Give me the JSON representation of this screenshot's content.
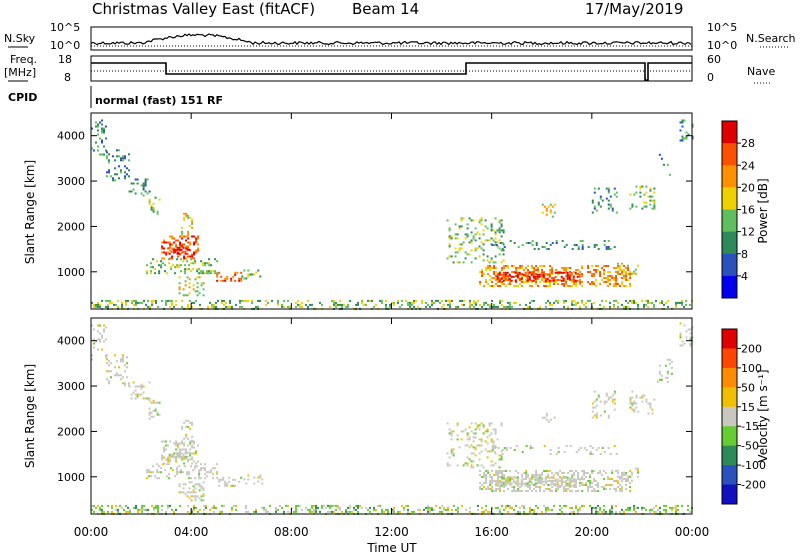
{
  "header": {
    "title": "Christmas Valley East (fitACF)",
    "beam": "Beam 14",
    "date": "17/May/2019"
  },
  "panels": {
    "nsky": {
      "label": "N.Sky",
      "ytop": "10^5",
      "ybot": "10^0",
      "right_label": "N.Search",
      "right_top": "10^5",
      "right_bot": "10^0"
    },
    "freq": {
      "label_line1": "Freq.",
      "label_line2": "[MHz]",
      "ytop": "18",
      "ybot": "8",
      "right_label": "Nave",
      "right_top": "60",
      "right_bot": "0"
    },
    "cpid": {
      "label": "CPID",
      "text": "normal (fast) 151 RF"
    }
  },
  "chart_data": [
    {
      "type": "heatmap",
      "name": "power",
      "ylabel": "Slant Range [km]",
      "yticks": [
        "4000",
        "3000",
        "2000",
        "1000"
      ],
      "ytick_values": [
        4000,
        3000,
        2000,
        1000
      ],
      "ylim": [
        180,
        4500
      ],
      "colorbar_label": "Power [dB]",
      "colorbar_ticks": [
        "28",
        "24",
        "20",
        "16",
        "12",
        "8",
        "4"
      ],
      "colors": [
        "#0000ee",
        "#2a52be",
        "#2e8b57",
        "#5fbf5f",
        "#f0d000",
        "#ff9000",
        "#ff5000",
        "#e00000"
      ]
    },
    {
      "type": "heatmap",
      "name": "velocity",
      "ylabel": "Slant Range [km]",
      "yticks": [
        "4000",
        "3000",
        "2000",
        "1000"
      ],
      "ytick_values": [
        4000,
        3000,
        2000,
        1000
      ],
      "ylim": [
        180,
        4500
      ],
      "colorbar_label": "Velocity [m s⁻¹]",
      "colorbar_ticks": [
        "200",
        "100",
        "50",
        "15",
        "-15",
        "-50",
        "-100",
        "-200"
      ],
      "colors": [
        "#1010c0",
        "#2a52be",
        "#2e8b57",
        "#66cc33",
        "#c8c8c0",
        "#f0c000",
        "#ff8c00",
        "#ff4500",
        "#e00000"
      ]
    }
  ],
  "xaxis": {
    "label": "Time UT",
    "ticks": [
      "00:00",
      "04:00",
      "08:00",
      "12:00",
      "16:00",
      "20:00",
      "00:00"
    ],
    "tick_hours": [
      0,
      4,
      8,
      12,
      16,
      20,
      24
    ]
  }
}
